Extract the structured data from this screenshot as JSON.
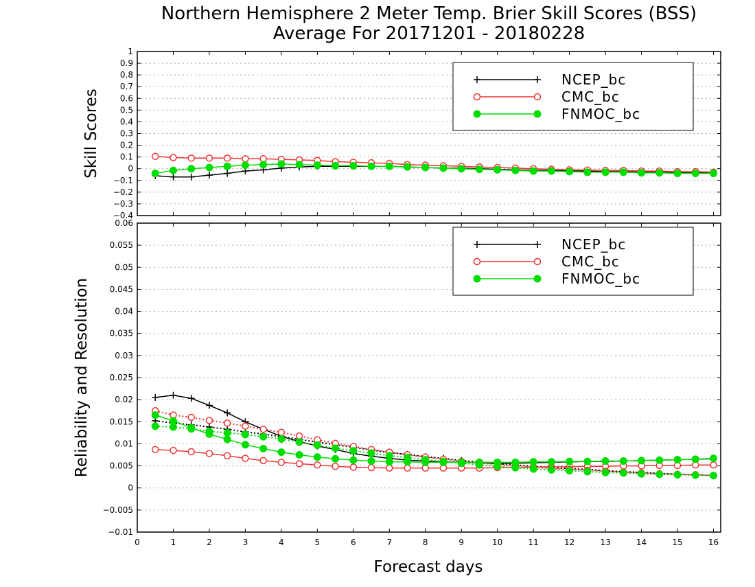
{
  "title_line1": "Northern Hemisphere 2 Meter Temp. Brier Skill Scores (BSS)",
  "title_line2": "Average For 20171201 - 20180228",
  "xlabel": "Forecast days",
  "colors": {
    "NCEP_bc": "#000000",
    "CMC_bc": "#ee3333",
    "FNMOC_bc": "#00dd00"
  },
  "chart_data": [
    {
      "type": "line",
      "panel": "top",
      "ylabel": "Skill Scores",
      "xlim": [
        0,
        16.2
      ],
      "ylim": [
        -0.4,
        1
      ],
      "x_ticks": [
        0,
        1,
        2,
        3,
        4,
        5,
        6,
        7,
        8,
        9,
        10,
        11,
        12,
        13,
        14,
        15,
        16
      ],
      "y_ticks": [
        -0.4,
        -0.3,
        -0.2,
        -0.1,
        0,
        0.1,
        0.2,
        0.3,
        0.4,
        0.5,
        0.6,
        0.7,
        0.8,
        0.9,
        1
      ],
      "y_tick_labels": [
        "−0.4",
        "−0.3",
        "−0.2",
        "−0.1",
        "0",
        "0.1",
        "0.2",
        "0.3",
        "0.4",
        "0.5",
        "0.6",
        "0.7",
        "0.8",
        "0.9",
        "1"
      ],
      "grid": true,
      "legend_position": "top-right",
      "x": [
        0.5,
        1,
        1.5,
        2,
        2.5,
        3,
        3.5,
        4,
        4.5,
        5,
        5.5,
        6,
        6.5,
        7,
        7.5,
        8,
        8.5,
        9,
        9.5,
        10,
        10.5,
        11,
        11.5,
        12,
        12.5,
        13,
        13.5,
        14,
        14.5,
        15,
        15.5,
        16
      ],
      "series": [
        {
          "name": "NCEP_bc",
          "marker": "plus",
          "line": "solid",
          "values": [
            -0.06,
            -0.07,
            -0.07,
            -0.055,
            -0.04,
            -0.02,
            -0.01,
            0.005,
            0.015,
            0.02,
            0.02,
            0.02,
            0.02,
            0.02,
            0.015,
            0.01,
            0.005,
            0.005,
            0,
            -0.005,
            -0.01,
            -0.015,
            -0.015,
            -0.02,
            -0.02,
            -0.025,
            -0.025,
            -0.03,
            -0.03,
            -0.035,
            -0.035,
            -0.035
          ]
        },
        {
          "name": "CMC_bc",
          "marker": "open-circle",
          "line": "solid",
          "values": [
            0.105,
            0.095,
            0.09,
            0.09,
            0.09,
            0.085,
            0.085,
            0.08,
            0.075,
            0.07,
            0.06,
            0.055,
            0.05,
            0.045,
            0.035,
            0.03,
            0.025,
            0.02,
            0.015,
            0.01,
            0.005,
            0,
            -0.005,
            -0.01,
            -0.012,
            -0.015,
            -0.015,
            -0.02,
            -0.02,
            -0.025,
            -0.025,
            -0.03
          ]
        },
        {
          "name": "FNMOC_bc",
          "marker": "filled-circle",
          "line": "solid",
          "values": [
            -0.04,
            -0.015,
            0,
            0.01,
            0.02,
            0.03,
            0.035,
            0.04,
            0.035,
            0.03,
            0.025,
            0.025,
            0.02,
            0.02,
            0.015,
            0.01,
            0.005,
            0,
            -0.005,
            -0.01,
            -0.015,
            -0.02,
            -0.02,
            -0.025,
            -0.03,
            -0.03,
            -0.03,
            -0.035,
            -0.035,
            -0.04,
            -0.04,
            -0.04
          ]
        }
      ]
    },
    {
      "type": "line",
      "panel": "bottom",
      "ylabel": "Reliability and Resolution",
      "xlim": [
        0,
        16.2
      ],
      "ylim": [
        -0.01,
        0.06
      ],
      "x_ticks": [
        0,
        1,
        2,
        3,
        4,
        5,
        6,
        7,
        8,
        9,
        10,
        11,
        12,
        13,
        14,
        15,
        16
      ],
      "y_ticks": [
        -0.01,
        -0.005,
        0,
        0.005,
        0.01,
        0.015,
        0.02,
        0.025,
        0.03,
        0.035,
        0.04,
        0.045,
        0.05,
        0.055,
        0.06
      ],
      "y_tick_labels": [
        "−0.01",
        "−0.005",
        "0",
        "0.005",
        "0.01",
        "0.015",
        "0.02",
        "0.025",
        "0.03",
        "0.035",
        "0.04",
        "0.045",
        "0.05",
        "0.055",
        "0.06"
      ],
      "grid": true,
      "legend_position": "top-right",
      "x": [
        0.5,
        1,
        1.5,
        2,
        2.5,
        3,
        3.5,
        4,
        4.5,
        5,
        5.5,
        6,
        6.5,
        7,
        7.5,
        8,
        8.5,
        9,
        9.5,
        10,
        10.5,
        11,
        11.5,
        12,
        12.5,
        13,
        13.5,
        14,
        14.5,
        15,
        15.5,
        16
      ],
      "series": [
        {
          "name": "NCEP_bc",
          "marker": "plus",
          "line": "solid",
          "values": [
            0.0205,
            0.021,
            0.0203,
            0.0187,
            0.017,
            0.015,
            0.0133,
            0.0117,
            0.0105,
            0.0095,
            0.0087,
            0.0078,
            0.0072,
            0.0067,
            0.0063,
            0.0061,
            0.0059,
            0.0058,
            0.0057,
            0.0056,
            0.0056,
            0.0057,
            0.0058,
            0.0059,
            0.006,
            0.006,
            0.0061,
            0.0062,
            0.0063,
            0.0064,
            0.0065,
            0.0066
          ]
        },
        {
          "name": "NCEP_bc",
          "marker": "plus",
          "line": "dotted",
          "values": [
            0.0152,
            0.0147,
            0.0143,
            0.0138,
            0.0133,
            0.0127,
            0.0122,
            0.0116,
            0.011,
            0.0104,
            0.0098,
            0.0092,
            0.0086,
            0.008,
            0.0076,
            0.0071,
            0.0067,
            0.0062,
            0.0059,
            0.0055,
            0.0052,
            0.0049,
            0.0046,
            0.0044,
            0.0042,
            0.0039,
            0.0037,
            0.0035,
            0.0033,
            0.0031,
            0.003,
            0.0028
          ]
        },
        {
          "name": "CMC_bc",
          "marker": "open-circle",
          "line": "solid",
          "values": [
            0.0087,
            0.0085,
            0.0082,
            0.0078,
            0.0073,
            0.0067,
            0.0062,
            0.0058,
            0.0055,
            0.0052,
            0.0049,
            0.0047,
            0.0046,
            0.0045,
            0.0045,
            0.0045,
            0.0045,
            0.0045,
            0.0045,
            0.0046,
            0.0046,
            0.0047,
            0.0048,
            0.0048,
            0.0049,
            0.0049,
            0.005,
            0.005,
            0.0051,
            0.0051,
            0.0052,
            0.0052
          ]
        },
        {
          "name": "CMC_bc",
          "marker": "open-circle",
          "line": "dotted",
          "values": [
            0.0175,
            0.0165,
            0.016,
            0.0153,
            0.0147,
            0.014,
            0.0133,
            0.0126,
            0.0118,
            0.0109,
            0.0101,
            0.0094,
            0.0087,
            0.0081,
            0.0075,
            0.007,
            0.0065,
            0.006,
            0.0056,
            0.0053,
            0.005,
            0.0047,
            0.0044,
            0.0042,
            0.004,
            0.0038,
            0.0036,
            0.0034,
            0.0032,
            0.0031,
            0.003,
            0.0028
          ]
        },
        {
          "name": "FNMOC_bc",
          "marker": "filled-circle",
          "line": "solid",
          "values": [
            0.0165,
            0.0152,
            0.0136,
            0.0122,
            0.011,
            0.0098,
            0.0089,
            0.0081,
            0.0075,
            0.007,
            0.0066,
            0.0063,
            0.0061,
            0.0059,
            0.0059,
            0.0058,
            0.0058,
            0.0058,
            0.0058,
            0.0058,
            0.0058,
            0.0059,
            0.0059,
            0.006,
            0.006,
            0.0061,
            0.0061,
            0.0062,
            0.0063,
            0.0064,
            0.0065,
            0.0067
          ]
        },
        {
          "name": "FNMOC_bc",
          "marker": "filled-circle",
          "line": "dotted",
          "values": [
            0.014,
            0.0138,
            0.0134,
            0.0128,
            0.0125,
            0.0121,
            0.0116,
            0.0111,
            0.0104,
            0.0097,
            0.009,
            0.0084,
            0.0079,
            0.0073,
            0.0069,
            0.0064,
            0.006,
            0.0056,
            0.0052,
            0.0049,
            0.0046,
            0.0043,
            0.0041,
            0.0039,
            0.0037,
            0.0035,
            0.0034,
            0.0032,
            0.0031,
            0.003,
            0.0029,
            0.0028
          ]
        }
      ]
    }
  ]
}
